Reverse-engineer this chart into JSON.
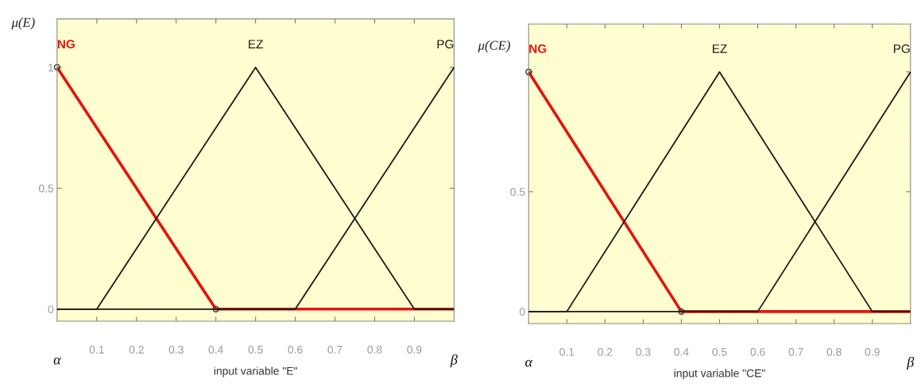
{
  "chart_data": [
    {
      "type": "line",
      "ylabel": "μ(E)",
      "xlabel": "input variable \"E\"",
      "series": [
        {
          "name": "NG",
          "color": "#e3140f",
          "x": [
            0,
            0.4,
            1
          ],
          "values": [
            1,
            0,
            0
          ],
          "marker": "circle"
        },
        {
          "name": "EZ",
          "color": "#1b1b16",
          "x": [
            0,
            0.1,
            0.5,
            0.9,
            1
          ],
          "values": [
            0,
            0,
            1,
            0,
            0
          ]
        },
        {
          "name": "PG",
          "color": "#1b1b16",
          "x": [
            0,
            0.6,
            1
          ],
          "values": [
            0,
            0,
            1
          ]
        }
      ],
      "xlim": [
        0,
        1
      ],
      "ylim": [
        -0.05,
        1.2
      ],
      "xticks": [
        0.1,
        0.2,
        0.3,
        0.4,
        0.5,
        0.6,
        0.7,
        0.8,
        0.9
      ],
      "yticks": [
        0,
        0.5,
        1
      ],
      "annotations": [
        "α",
        "β"
      ],
      "grid": false,
      "legend": false
    },
    {
      "type": "line",
      "ylabel": "μ(CE)",
      "xlabel": "input variable \"CE\"",
      "series": [
        {
          "name": "NG",
          "color": "#e3140f",
          "x": [
            0,
            0.4,
            1
          ],
          "values": [
            1,
            0,
            0
          ],
          "marker": "circle"
        },
        {
          "name": "EZ",
          "color": "#1b1b16",
          "x": [
            0,
            0.1,
            0.5,
            0.9,
            1
          ],
          "values": [
            0,
            0,
            1,
            0,
            0
          ]
        },
        {
          "name": "PG",
          "color": "#1b1b16",
          "x": [
            0,
            0.6,
            1
          ],
          "values": [
            0,
            0,
            1
          ]
        }
      ],
      "xlim": [
        0,
        1
      ],
      "ylim": [
        -0.05,
        1.2
      ],
      "xticks": [
        0.1,
        0.2,
        0.3,
        0.4,
        0.5,
        0.6,
        0.7,
        0.8,
        0.9
      ],
      "yticks": [
        0,
        0.5,
        {
          "value": 1,
          "label": null
        }
      ],
      "annotations": [
        "α",
        "β"
      ],
      "grid": false,
      "legend": false
    }
  ]
}
